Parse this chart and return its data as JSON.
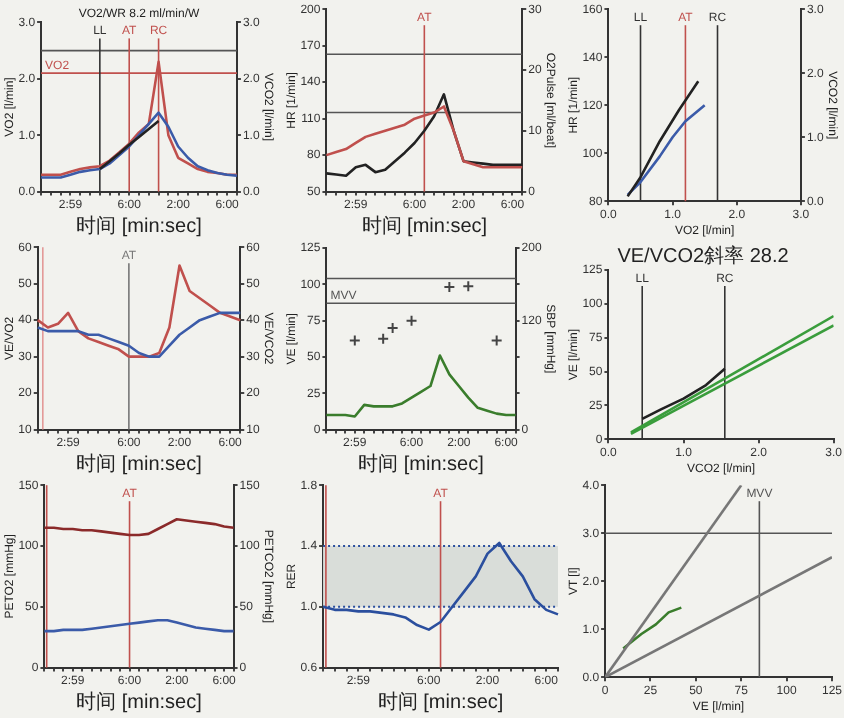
{
  "chart_data": [
    {
      "type": "line",
      "title": "VO2/WR 8.2 ml/min/W",
      "xlabel": "时间 [min:sec]",
      "ylabel": "VO2 [l/min]",
      "y2label": "VCO2 [l/min]",
      "categories": [
        null,
        null,
        null,
        "2:59",
        null,
        null,
        null,
        null,
        null,
        "6:00",
        null,
        null,
        null,
        null,
        "2:00",
        null,
        null,
        null,
        null,
        "6:00",
        null
      ],
      "ylim": [
        0,
        3
      ],
      "yticks": [
        {
          "value": 0,
          "label": "0.0"
        },
        {
          "value": 1,
          "label": "1.0"
        },
        {
          "value": 2,
          "label": "2.0"
        },
        {
          "value": 3,
          "label": "3.0"
        }
      ],
      "y2lim": [
        0,
        3
      ],
      "y2ticks": [
        {
          "value": 0,
          "label": "0.0"
        },
        {
          "value": 1,
          "label": "1.0"
        },
        {
          "value": 2,
          "label": "2.0"
        },
        {
          "value": 3,
          "label": "3.0"
        }
      ],
      "series": [
        {
          "color": "#c0504d",
          "values": [
            0.3,
            0.3,
            0.3,
            0.35,
            0.4,
            0.43,
            0.45,
            0.55,
            0.7,
            0.85,
            1.05,
            1.2,
            2.3,
            1.0,
            0.6,
            0.5,
            0.4,
            0.35,
            0.33,
            0.3,
            0.3
          ]
        },
        {
          "color": "#3b5ba9",
          "axis": "y2",
          "values": [
            0.25,
            0.25,
            0.25,
            0.3,
            0.35,
            0.38,
            0.4,
            0.5,
            0.65,
            0.8,
            1.0,
            1.2,
            1.4,
            1.15,
            0.8,
            0.6,
            0.45,
            0.38,
            0.33,
            0.3,
            0.28
          ]
        },
        {
          "color": "#222222",
          "values": [
            null,
            null,
            null,
            null,
            null,
            null,
            0.4,
            0.54,
            0.68,
            0.83,
            0.97,
            1.11,
            1.25,
            null,
            null,
            null,
            null,
            null,
            null,
            null,
            null
          ]
        }
      ],
      "annotations": [
        "LL",
        "AT",
        "RC"
      ],
      "ref_lines": [
        {
          "axis": "y",
          "value": 2.5,
          "color": "#555555"
        },
        {
          "axis": "y",
          "value": 2.1,
          "label": "VO2",
          "color": "#c0504d"
        }
      ]
    },
    {
      "type": "line",
      "xlabel": "时间 [min:sec]",
      "ylabel": "HR [1/min]",
      "y2label": "O2Pulse [ml/beat]",
      "categories": [
        null,
        null,
        null,
        "2:59",
        null,
        null,
        null,
        null,
        null,
        "6:00",
        null,
        null,
        null,
        null,
        "2:00",
        null,
        null,
        null,
        null,
        "6:00",
        null
      ],
      "ylim": [
        50,
        200
      ],
      "yticks": [
        50,
        80,
        110,
        140,
        170,
        200
      ],
      "y2lim": [
        0,
        30
      ],
      "y2ticks": [
        0,
        10,
        20,
        30
      ],
      "series": [
        {
          "color": "#222222",
          "values": [
            65,
            64,
            63,
            70,
            72,
            66,
            68,
            75,
            82,
            90,
            100,
            112,
            130,
            100,
            75,
            74,
            73,
            72,
            72,
            72,
            72
          ]
        },
        {
          "color": "#c0504d",
          "axis": "y2",
          "values": [
            6,
            6.5,
            7,
            8,
            9,
            9.5,
            10,
            10.5,
            11,
            12,
            12.5,
            13,
            14,
            10,
            5,
            4.5,
            4,
            4,
            4,
            4,
            4
          ]
        }
      ],
      "annotations": [
        "AT"
      ],
      "ref_lines": [
        {
          "axis": "y",
          "value": 163,
          "color": "#555555"
        },
        {
          "axis": "y",
          "value": 115,
          "color": "#555555"
        }
      ]
    },
    {
      "type": "line",
      "xlabel": "VO2 [l/min]",
      "ylabel": "HR [1/min]",
      "y2label": "VCO2 [l/min]",
      "xlim": [
        0,
        3
      ],
      "xticks": [
        {
          "value": 0,
          "label": "0.0"
        },
        {
          "value": 1,
          "label": "1.0"
        },
        {
          "value": 2,
          "label": "2.0"
        },
        {
          "value": 3,
          "label": "3.0"
        }
      ],
      "ylim": [
        80,
        160
      ],
      "yticks": [
        80,
        100,
        120,
        140,
        160
      ],
      "y2lim": [
        0,
        3
      ],
      "y2ticks": [
        {
          "value": 0,
          "label": "0.0"
        },
        {
          "value": 1,
          "label": "1.0"
        },
        {
          "value": 2,
          "label": "2.0"
        },
        {
          "value": 3,
          "label": "3.0"
        }
      ],
      "series": [
        {
          "color": "#3b5ba9",
          "axis": "y2",
          "x": [
            0.3,
            0.5,
            0.8,
            1.0,
            1.2,
            1.5
          ],
          "values": [
            0.1,
            0.3,
            0.7,
            1.0,
            1.25,
            1.5
          ]
        },
        {
          "color": "#222222",
          "x": [
            0.3,
            0.5,
            0.8,
            1.1,
            1.4
          ],
          "values": [
            82,
            90,
            105,
            118,
            130
          ]
        }
      ],
      "ref_lines": [
        {
          "axis": "x",
          "value": 0.5,
          "label": "LL",
          "color": "#333333"
        },
        {
          "axis": "x",
          "value": 1.2,
          "label": "AT",
          "color": "#c0504d"
        },
        {
          "axis": "x",
          "value": 1.7,
          "label": "RC",
          "color": "#333333"
        }
      ]
    },
    {
      "type": "line",
      "xlabel": "时间 [min:sec]",
      "ylabel": "VE/VO2",
      "y2label": "VE/VCO2",
      "categories": [
        null,
        null,
        null,
        "2:59",
        null,
        null,
        null,
        null,
        null,
        "6:00",
        null,
        null,
        null,
        null,
        "2:00",
        null,
        null,
        null,
        null,
        "6:00",
        null
      ],
      "ylim": [
        10,
        60
      ],
      "yticks": [
        10,
        20,
        30,
        40,
        50,
        60
      ],
      "y2lim": [
        10,
        60
      ],
      "y2ticks": [
        10,
        20,
        30,
        40,
        50,
        60
      ],
      "series": [
        {
          "color": "#c0504d",
          "values": [
            40,
            38,
            39,
            42,
            37,
            35,
            34,
            33,
            32,
            30,
            30,
            30,
            31,
            38,
            55,
            48,
            46,
            44,
            42,
            41,
            40
          ]
        },
        {
          "color": "#3b5ba9",
          "axis": "y2",
          "values": [
            38,
            37,
            37,
            37,
            37,
            36,
            36,
            35,
            34,
            33,
            31,
            30,
            30,
            33,
            36,
            38,
            40,
            41,
            42,
            42,
            42
          ]
        }
      ],
      "annotations": [
        "AT"
      ]
    },
    {
      "type": "line",
      "xlabel": "时间 [min:sec]",
      "ylabel": "VE [l/min]",
      "y2label": "SBP [mmHg]",
      "categories": [
        null,
        null,
        null,
        "2:59",
        null,
        null,
        null,
        null,
        null,
        "6:00",
        null,
        null,
        null,
        null,
        "2:00",
        null,
        null,
        null,
        null,
        "6:00",
        null
      ],
      "ylim": [
        0,
        125
      ],
      "yticks": [
        0,
        25,
        50,
        75,
        100,
        125
      ],
      "y2lim": [
        0,
        200
      ],
      "y2ticks": [
        0,
        {
          "value": 40,
          "label": null
        },
        {
          "value": 80,
          "label": null
        },
        120,
        {
          "value": 160,
          "label": null
        },
        200
      ],
      "series": [
        {
          "color": "#3a7d2c",
          "values": [
            10,
            10,
            10,
            9,
            17,
            16,
            16,
            16,
            18,
            22,
            26,
            30,
            51,
            38,
            30,
            22,
            15,
            13,
            11,
            10,
            10
          ]
        },
        {
          "type": "scatter",
          "marker": "cross",
          "color": "#444444",
          "axis": "y2",
          "values": [
            null,
            null,
            null,
            98,
            null,
            null,
            100,
            112,
            null,
            120,
            null,
            null,
            null,
            157,
            null,
            158,
            null,
            null,
            98,
            null,
            null
          ]
        }
      ],
      "ref_lines": [
        {
          "axis": "y",
          "value": 104,
          "color": "#555555"
        },
        {
          "axis": "y",
          "value": 87,
          "label": "MVV",
          "color": "#555555"
        }
      ]
    },
    {
      "type": "line",
      "title": "VE/VCO2斜率 28.2",
      "xlabel": "VCO2 [l/min]",
      "ylabel": "VE [l/min]",
      "xlim": [
        0,
        3
      ],
      "xticks": [
        {
          "value": 0,
          "label": "0.0"
        },
        {
          "value": 1,
          "label": "1.0"
        },
        {
          "value": 2,
          "label": "2.0"
        },
        {
          "value": 3,
          "label": "3.0"
        }
      ],
      "ylim": [
        0,
        125
      ],
      "yticks": [
        0,
        25,
        50,
        75,
        100,
        125
      ],
      "series": [
        {
          "color": "#222222",
          "x": [
            0.45,
            0.7,
            1.0,
            1.3,
            1.55
          ],
          "values": [
            15,
            22,
            30,
            40,
            52
          ]
        },
        {
          "color": "#3a9d3c",
          "x": [
            0.3,
            3.0
          ],
          "values": [
            5,
            91
          ]
        },
        {
          "color": "#3a9d3c",
          "x": [
            0.3,
            3.0
          ],
          "values": [
            4,
            84
          ]
        }
      ],
      "ref_lines": [
        {
          "axis": "x",
          "value": 0.45,
          "label": "LL",
          "color": "#333333"
        },
        {
          "axis": "x",
          "value": 1.55,
          "label": "RC",
          "color": "#333333"
        }
      ]
    },
    {
      "type": "line",
      "xlabel": "时间 [min:sec]",
      "ylabel": "PETO2 [mmHg]",
      "y2label": "PETCO2 [mmHg]",
      "categories": [
        null,
        null,
        null,
        "2:59",
        null,
        null,
        null,
        null,
        null,
        "6:00",
        null,
        null,
        null,
        null,
        "2:00",
        null,
        null,
        null,
        null,
        "6:00",
        null
      ],
      "ylim": [
        0,
        150
      ],
      "yticks": [
        0,
        50,
        100,
        150
      ],
      "y2lim": [
        0,
        150
      ],
      "y2ticks": [
        0,
        50,
        100,
        150
      ],
      "series": [
        {
          "color": "#8b2a2a",
          "values": [
            115,
            115,
            114,
            114,
            113,
            113,
            112,
            111,
            110,
            109,
            109,
            110,
            114,
            118,
            122,
            121,
            120,
            119,
            118,
            116,
            115
          ]
        },
        {
          "color": "#3b5ba9",
          "axis": "y2",
          "values": [
            30,
            30,
            31,
            31,
            31,
            32,
            33,
            34,
            35,
            36,
            37,
            38,
            39,
            39,
            37,
            35,
            33,
            32,
            31,
            30,
            30
          ]
        }
      ],
      "annotations": [
        "AT"
      ]
    },
    {
      "type": "line",
      "xlabel": "时间 [min:sec]",
      "ylabel": "RER",
      "categories": [
        null,
        null,
        null,
        "2:59",
        null,
        null,
        null,
        null,
        null,
        "6:00",
        null,
        null,
        null,
        null,
        "2:00",
        null,
        null,
        null,
        null,
        "6:00",
        null
      ],
      "ylim": [
        0.6,
        1.8
      ],
      "yticks": [
        0.6,
        {
          "value": 1,
          "label": "1.0"
        },
        1.4,
        1.8
      ],
      "series": [
        {
          "color": "#2b4f9e",
          "values": [
            1.0,
            0.98,
            0.98,
            0.97,
            0.97,
            0.96,
            0.95,
            0.93,
            0.88,
            0.85,
            0.9,
            1.0,
            1.1,
            1.2,
            1.35,
            1.42,
            1.3,
            1.2,
            1.05,
            0.98,
            0.95
          ]
        }
      ],
      "bands": [
        {
          "axis": "y",
          "from": 1.0,
          "to": 1.4,
          "color": "#d9ddd9"
        }
      ],
      "annotations": [
        "AT"
      ]
    },
    {
      "type": "line",
      "xlabel": "VE [l/min]",
      "ylabel": "VT [l]",
      "xlim": [
        0,
        125
      ],
      "xticks": [
        0,
        25,
        50,
        75,
        100,
        125
      ],
      "ylim": [
        0,
        4
      ],
      "yticks": [
        {
          "value": 0,
          "label": "0.0"
        },
        {
          "value": 1,
          "label": "1.0"
        },
        {
          "value": 2,
          "label": "2.0"
        },
        {
          "value": 3,
          "label": "3.0"
        },
        {
          "value": 4,
          "label": "4.0"
        }
      ],
      "series": [
        {
          "color": "#3a7d2c",
          "x": [
            10,
            15,
            20,
            28,
            35,
            42
          ],
          "values": [
            0.6,
            0.75,
            0.9,
            1.1,
            1.35,
            1.45
          ]
        },
        {
          "color": "#777777",
          "x": [
            0,
            75
          ],
          "values": [
            0,
            4
          ]
        },
        {
          "color": "#777777",
          "x": [
            0,
            125
          ],
          "values": [
            0,
            2.5
          ]
        }
      ],
      "ref_lines": [
        {
          "axis": "y",
          "value": 3,
          "color": "#555555"
        },
        {
          "axis": "x",
          "value": 85,
          "label": "MVV",
          "color": "#555555"
        }
      ]
    }
  ]
}
